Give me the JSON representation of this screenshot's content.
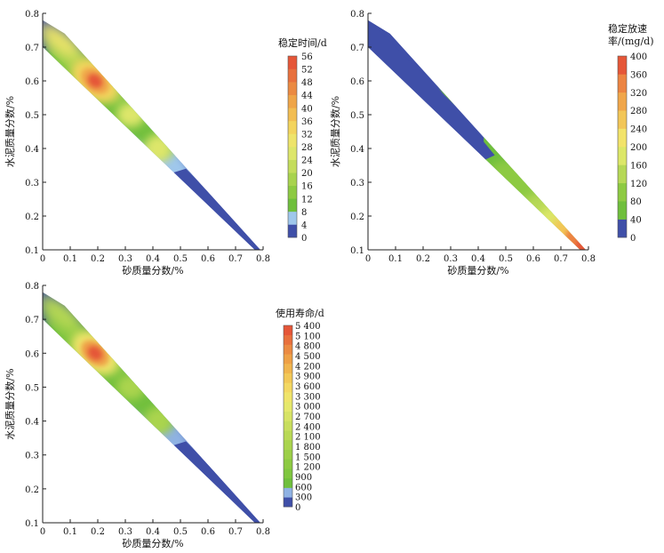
{
  "chart_data": [
    {
      "type": "heatmap",
      "subtype": "ternary-style filled contour",
      "xlabel": "砂质量分数/%",
      "ylabel": "水泥质量分数/%",
      "xlim": [
        0,
        0.8
      ],
      "ylim": [
        0.1,
        0.8
      ],
      "xticks": [
        "0",
        "0.1",
        "0.2",
        "0.3",
        "0.4",
        "0.5",
        "0.6",
        "0.7",
        "0.8"
      ],
      "yticks": [
        "0.1",
        "0.2",
        "0.3",
        "0.4",
        "0.5",
        "0.6",
        "0.7",
        "0.8"
      ],
      "colorbar": {
        "title": "稳定时间/d",
        "ticks": [
          "0",
          "4",
          "8",
          "12",
          "16",
          "20",
          "24",
          "28",
          "32",
          "36",
          "40",
          "44",
          "48",
          "52",
          "56"
        ],
        "colors": [
          "#3f4fa8",
          "#9fc7ec",
          "#6fbf3c",
          "#8dca42",
          "#a8d34e",
          "#c4dd5c",
          "#dde66a",
          "#eee46a",
          "#f3d45d",
          "#f2bd52",
          "#efa548",
          "#eb8a42",
          "#e8703d",
          "#e55638"
        ]
      },
      "features": [
        {
          "name": "max",
          "x": 0.19,
          "y": 0.6,
          "value": 56
        },
        {
          "name": "local-high",
          "x": 0.32,
          "y": 0.5,
          "value": 28
        },
        {
          "name": "local-high",
          "x": 0.42,
          "y": 0.4,
          "value": 28
        }
      ]
    },
    {
      "type": "heatmap",
      "subtype": "ternary-style filled contour",
      "xlabel": "砂质量分数/%",
      "ylabel": "水泥质量分数/%",
      "xlim": [
        0,
        0.8
      ],
      "ylim": [
        0.1,
        0.8
      ],
      "xticks": [
        "0",
        "0.1",
        "0.2",
        "0.3",
        "0.4",
        "0.5",
        "0.6",
        "0.7",
        "0.8"
      ],
      "yticks": [
        "0.1",
        "0.2",
        "0.3",
        "0.4",
        "0.5",
        "0.6",
        "0.7",
        "0.8"
      ],
      "colorbar": {
        "title_lines": [
          "稳定放速",
          "率/(mg/d)"
        ],
        "ticks": [
          "0",
          "40",
          "80",
          "120",
          "160",
          "200",
          "240",
          "280",
          "320",
          "360",
          "400"
        ],
        "colors": [
          "#3f4fa8",
          "#6fbf3c",
          "#8dca42",
          "#b6d856",
          "#dce768",
          "#f2e36a",
          "#f2c657",
          "#f0a64a",
          "#ec8442",
          "#e55638"
        ]
      },
      "features": [
        {
          "name": "max",
          "x": 0.78,
          "y": 0.11,
          "value": 400
        }
      ]
    },
    {
      "type": "heatmap",
      "subtype": "ternary-style filled contour",
      "xlabel": "砂质量分数/%",
      "ylabel": "水泥质量分数/%",
      "xlim": [
        0,
        0.8
      ],
      "ylim": [
        0.1,
        0.8
      ],
      "xticks": [
        "0",
        "0.1",
        "0.2",
        "0.3",
        "0.4",
        "0.5",
        "0.6",
        "0.7",
        "0.8"
      ],
      "yticks": [
        "0.1",
        "0.2",
        "0.3",
        "0.4",
        "0.5",
        "0.6",
        "0.7",
        "0.8"
      ],
      "colorbar": {
        "title": "使用寿命/d",
        "ticks": [
          "0",
          "300",
          "600",
          "900",
          "1 200",
          "1 500",
          "1 800",
          "2 100",
          "2 400",
          "2 700",
          "3 000",
          "3 300",
          "3 600",
          "3 900",
          "4 200",
          "4 500",
          "4 800",
          "5 100",
          "5 400"
        ],
        "colors": [
          "#3f4fa8",
          "#8fb2e3",
          "#6fbf3c",
          "#7fc63f",
          "#8dca42",
          "#9ccf48",
          "#aad44e",
          "#b9d955",
          "#c8de5d",
          "#d7e365",
          "#e5e86b",
          "#efe46a",
          "#f3d862",
          "#f2c857",
          "#f0b54e",
          "#eea046",
          "#eb8a42",
          "#e8703d",
          "#e55638"
        ]
      },
      "features": [
        {
          "name": "max",
          "x": 0.19,
          "y": 0.6,
          "value": 5400
        },
        {
          "name": "local-high",
          "x": 0.42,
          "y": 0.4,
          "value": 2400
        }
      ]
    }
  ]
}
